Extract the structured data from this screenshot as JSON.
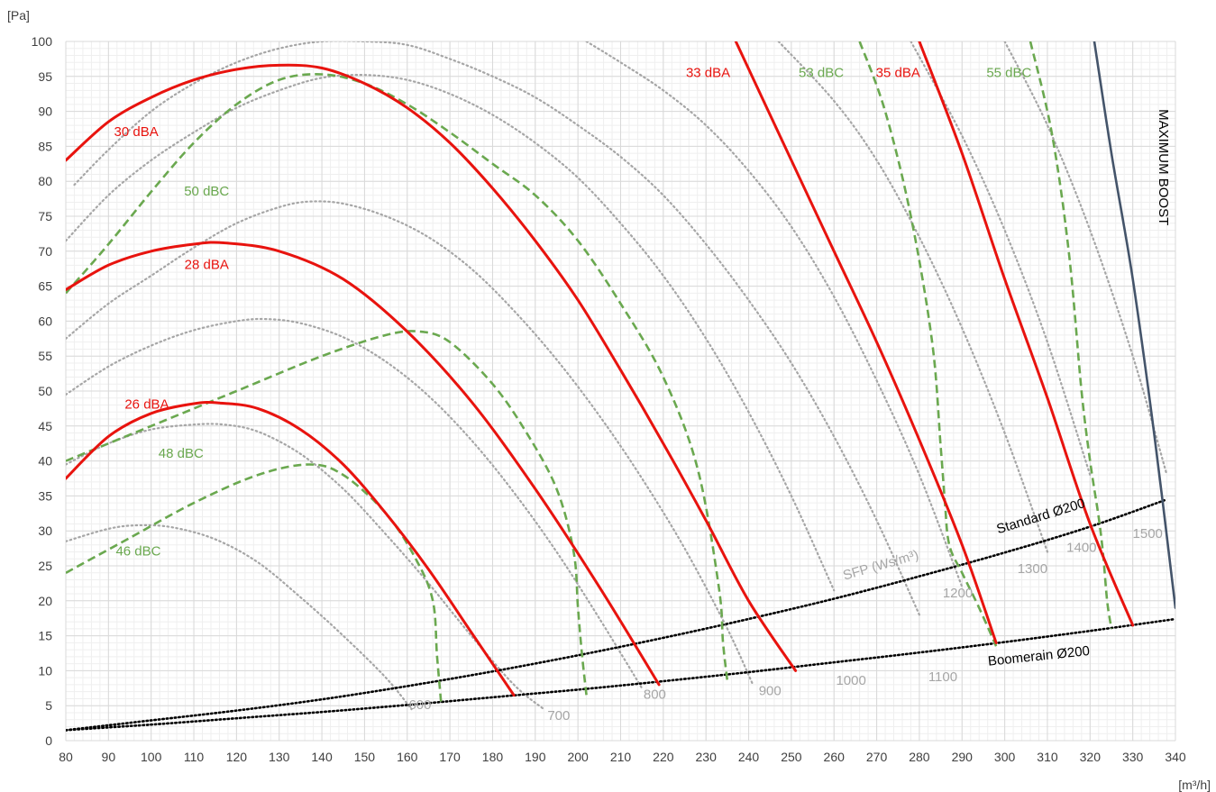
{
  "chart_data": {
    "type": "line",
    "title": "",
    "xlabel": "[m³/h]",
    "ylabel": "[Pa]",
    "xlim": [
      80,
      340
    ],
    "ylim": [
      0,
      100
    ],
    "x_ticks": [
      80,
      90,
      100,
      110,
      120,
      130,
      140,
      150,
      160,
      170,
      180,
      190,
      200,
      210,
      220,
      230,
      240,
      250,
      260,
      270,
      280,
      290,
      300,
      310,
      320,
      330,
      340
    ],
    "y_ticks": [
      0,
      5,
      10,
      15,
      20,
      25,
      30,
      35,
      40,
      45,
      50,
      55,
      60,
      65,
      70,
      75,
      80,
      85,
      90,
      95,
      100
    ],
    "x_minor_step": 2,
    "y_minor_step": 1,
    "grid": true,
    "colors": {
      "dba": "#e8130e",
      "dbc": "#6aa84f",
      "sfp": "#a6a6a6",
      "system": "#000000",
      "max_boost": "#44546a",
      "grid_major": "#d9d9d9",
      "grid_minor": "#efefef",
      "axis_text": "#3f3f3f"
    },
    "series": [
      {
        "name": "26 dBA",
        "kind": "dba",
        "x": [
          80,
          90,
          100,
          110,
          116,
          125,
          135,
          145,
          155,
          165,
          175,
          185
        ],
        "y": [
          37.5,
          43.5,
          46.8,
          48.2,
          48.3,
          47.5,
          44.5,
          39.5,
          32.5,
          24.5,
          15.5,
          6.5
        ]
      },
      {
        "name": "28 dBA",
        "kind": "dba",
        "x": [
          80,
          90,
          100,
          110,
          117,
          130,
          145,
          160,
          175,
          190,
          205,
          219
        ],
        "y": [
          64.5,
          68,
          70,
          71,
          71.2,
          70,
          66,
          58.5,
          48.5,
          36,
          22,
          8
        ]
      },
      {
        "name": "30 dBA",
        "kind": "dba",
        "x": [
          80,
          90,
          100,
          110,
          120,
          130,
          140,
          150,
          160,
          170,
          180,
          190,
          200,
          210,
          220,
          230,
          240,
          251
        ],
        "y": [
          83,
          88.5,
          92,
          94.5,
          96,
          96.6,
          96.2,
          94,
          90.5,
          85.5,
          79,
          71.5,
          63,
          53,
          42.5,
          31.5,
          20,
          10
        ]
      },
      {
        "name": "33 dBA",
        "kind": "dba",
        "x": [
          237,
          250,
          260,
          270,
          280,
          290,
          298
        ],
        "y": [
          100,
          83,
          70,
          57,
          43,
          28,
          14
        ]
      },
      {
        "name": "35 dBA",
        "kind": "dba",
        "x": [
          280,
          290,
          300,
          310,
          320,
          330
        ],
        "y": [
          100,
          84,
          66,
          49,
          31,
          16.5
        ]
      },
      {
        "name": "46 dBC",
        "kind": "dbc",
        "x": [
          80,
          95,
          110,
          125,
          137,
          145,
          155,
          162,
          166,
          167,
          168
        ],
        "y": [
          24,
          29,
          34,
          38,
          39.5,
          38,
          32.5,
          26,
          20,
          12,
          5
        ]
      },
      {
        "name": "48 dBC",
        "kind": "dbc",
        "x": [
          80,
          100,
          120,
          140,
          155,
          163,
          170,
          180,
          188,
          195,
          199,
          200,
          201,
          202
        ],
        "y": [
          40,
          45,
          50,
          55,
          58,
          58.5,
          57,
          51,
          44,
          36,
          27,
          19,
          12,
          6.5
        ]
      },
      {
        "name": "50 dBC",
        "kind": "dbc",
        "x": [
          80,
          90,
          100,
          110,
          120,
          130,
          140,
          150,
          160,
          170,
          180,
          190,
          200,
          210,
          220,
          228,
          233,
          234,
          235
        ],
        "y": [
          64,
          71,
          78.5,
          85.5,
          91,
          94.5,
          95.3,
          94,
          91,
          87,
          82.5,
          78,
          71.5,
          62.5,
          52,
          39,
          22,
          14,
          8.5
        ]
      },
      {
        "name": "53 dBC",
        "kind": "dbc",
        "x": [
          266,
          272,
          278,
          283,
          285,
          286,
          287,
          290,
          294,
          298
        ],
        "y": [
          100,
          90,
          75,
          57,
          42,
          34,
          28,
          24,
          19,
          13.5
        ]
      },
      {
        "name": "55 dBC",
        "kind": "dbc",
        "x": [
          306,
          311,
          315,
          318,
          320,
          322,
          323,
          324,
          325
        ],
        "y": [
          100,
          87,
          70,
          50,
          40,
          32,
          27,
          20,
          16
        ]
      },
      {
        "name": "MAXIMUM BOOST",
        "kind": "max_boost",
        "x": [
          321,
          325,
          330,
          335,
          340
        ],
        "y": [
          100,
          84,
          66,
          44,
          19
        ]
      },
      {
        "name": "Standard Ø200",
        "kind": "system",
        "x": [
          80,
          100,
          120,
          140,
          160,
          180,
          200,
          220,
          240,
          260,
          280,
          300,
          320,
          338
        ],
        "y": [
          1.5,
          2.9,
          4.3,
          5.9,
          7.8,
          9.9,
          12.2,
          14.7,
          17.4,
          20.3,
          23.5,
          26.9,
          30.6,
          34.5
        ]
      },
      {
        "name": "Boomerain Ø200",
        "kind": "system",
        "x": [
          80,
          100,
          120,
          140,
          160,
          180,
          200,
          220,
          240,
          260,
          280,
          300,
          320,
          340
        ],
        "y": [
          1.5,
          2.3,
          3.2,
          4.1,
          5.1,
          6.2,
          7.3,
          8.5,
          9.8,
          11.2,
          12.6,
          14.1,
          15.7,
          17.4
        ]
      },
      {
        "name": "600",
        "kind": "sfp",
        "x": [
          80,
          90,
          97,
          105,
          115,
          125,
          135,
          145,
          155,
          161
        ],
        "y": [
          28.5,
          30.3,
          30.8,
          30.5,
          28.8,
          25.5,
          20.5,
          15,
          9,
          4.5
        ]
      },
      {
        "name": "700",
        "kind": "sfp",
        "x": [
          80,
          90,
          100,
          110,
          117,
          125,
          135,
          145,
          155,
          165,
          175,
          185,
          192
        ],
        "y": [
          39.5,
          42.5,
          44.5,
          45.2,
          45.2,
          44.2,
          41,
          36,
          29.5,
          22.5,
          15,
          8,
          4.5
        ]
      },
      {
        "name": "800",
        "kind": "sfp",
        "x": [
          80,
          90,
          100,
          110,
          120,
          127,
          135,
          145,
          155,
          165,
          175,
          185,
          195,
          205,
          215
        ],
        "y": [
          49.5,
          53.5,
          56.5,
          58.7,
          60,
          60.3,
          59.7,
          57.7,
          54.2,
          49.3,
          43,
          35.5,
          27,
          17.5,
          7.5
        ]
      },
      {
        "name": "900",
        "kind": "sfp",
        "x": [
          80,
          90,
          100,
          110,
          120,
          130,
          137,
          145,
          155,
          165,
          175,
          185,
          195,
          205,
          215,
          225,
          235,
          241
        ],
        "y": [
          57.5,
          62.5,
          66.5,
          70.5,
          74,
          76.3,
          77.1,
          76.8,
          75,
          72,
          67.5,
          61.5,
          54.5,
          46.5,
          37.5,
          27.5,
          16,
          8
        ]
      },
      {
        "name": "1000",
        "kind": "sfp",
        "x": [
          80,
          90,
          100,
          110,
          120,
          130,
          140,
          150,
          160,
          170,
          180,
          190,
          200,
          210,
          220,
          230,
          240,
          250,
          260
        ],
        "y": [
          71.5,
          78,
          83,
          87,
          90.5,
          93,
          94.8,
          95.2,
          94.5,
          92.5,
          89.5,
          85.5,
          80.5,
          74,
          66.5,
          57.5,
          47,
          35,
          21.5
        ]
      },
      {
        "name": "1100",
        "kind": "sfp",
        "x": [
          82,
          90,
          100,
          110,
          120,
          130,
          140,
          150,
          160,
          170,
          180,
          190,
          200,
          210,
          220,
          230,
          240,
          250,
          260,
          270,
          280
        ],
        "y": [
          79.5,
          84.5,
          90,
          94,
          97,
          99,
          100,
          100,
          99.5,
          97.5,
          95,
          92,
          88,
          83.5,
          78,
          71,
          63,
          54,
          43.5,
          31.5,
          18
        ]
      },
      {
        "name": "1200",
        "kind": "sfp",
        "x": [
          202,
          210,
          220,
          230,
          240,
          250,
          260,
          270,
          280,
          290
        ],
        "y": [
          100,
          97,
          93,
          88,
          81.5,
          73.5,
          63.5,
          51.5,
          38,
          22
        ]
      },
      {
        "name": "1300",
        "kind": "sfp",
        "x": [
          247,
          260,
          270,
          280,
          290,
          300,
          310
        ],
        "y": [
          100,
          91.5,
          83,
          72,
          59,
          44,
          27
        ]
      },
      {
        "name": "1400",
        "kind": "sfp",
        "x": [
          278,
          290,
          300,
          310,
          320
        ],
        "y": [
          100,
          86.5,
          73,
          57,
          38
        ]
      },
      {
        "name": "1500",
        "kind": "sfp",
        "x": [
          300,
          310,
          320,
          330,
          338
        ],
        "y": [
          100,
          88,
          73,
          55,
          38
        ]
      }
    ],
    "annotations": [
      {
        "text": "30 dBA",
        "kind": "dba",
        "x": 96.5,
        "y": 87
      },
      {
        "text": "28 dBA",
        "kind": "dba",
        "x": 113,
        "y": 68
      },
      {
        "text": "26 dBA",
        "kind": "dba",
        "x": 99,
        "y": 48
      },
      {
        "text": "33 dBA",
        "kind": "dba",
        "x": 230.5,
        "y": 95.4
      },
      {
        "text": "35 dBA",
        "kind": "dba",
        "x": 275,
        "y": 95.4
      },
      {
        "text": "50 dBC",
        "kind": "dbc",
        "x": 113,
        "y": 78.5
      },
      {
        "text": "48 dBC",
        "kind": "dbc",
        "x": 107,
        "y": 41
      },
      {
        "text": "46 dBC",
        "kind": "dbc",
        "x": 97,
        "y": 27
      },
      {
        "text": "53 dBC",
        "kind": "dbc",
        "x": 257,
        "y": 95.4
      },
      {
        "text": "55 dBC",
        "kind": "dbc",
        "x": 301,
        "y": 95.4
      },
      {
        "text": "600",
        "kind": "sfp",
        "x": 163,
        "y": 5
      },
      {
        "text": "700",
        "kind": "sfp",
        "x": 195.5,
        "y": 3.5
      },
      {
        "text": "800",
        "kind": "sfp",
        "x": 218,
        "y": 6.5
      },
      {
        "text": "900",
        "kind": "sfp",
        "x": 245,
        "y": 7
      },
      {
        "text": "1000",
        "kind": "sfp",
        "x": 264,
        "y": 8.5
      },
      {
        "text": "1100",
        "kind": "sfp",
        "x": 285.5,
        "y": 9
      },
      {
        "text": "1200",
        "kind": "sfp",
        "x": 289,
        "y": 21
      },
      {
        "text": "1300",
        "kind": "sfp",
        "x": 306.5,
        "y": 24.5
      },
      {
        "text": "1400",
        "kind": "sfp",
        "x": 318,
        "y": 27.5
      },
      {
        "text": "1500",
        "kind": "sfp",
        "x": 333.5,
        "y": 29.5
      },
      {
        "text": "SFP (Ws/m³)",
        "kind": "sfp",
        "x": 271,
        "y": 25,
        "angle": -16
      },
      {
        "text": "Standard Ø200",
        "kind": "system",
        "x": 308.5,
        "y": 32,
        "angle": -17
      },
      {
        "text": "Boomerain Ø200",
        "kind": "system",
        "x": 308,
        "y": 12,
        "angle": -6
      },
      {
        "text": "MAXIMUM BOOST",
        "kind": "system",
        "x": 337,
        "y": 82,
        "angle": 90
      }
    ]
  }
}
